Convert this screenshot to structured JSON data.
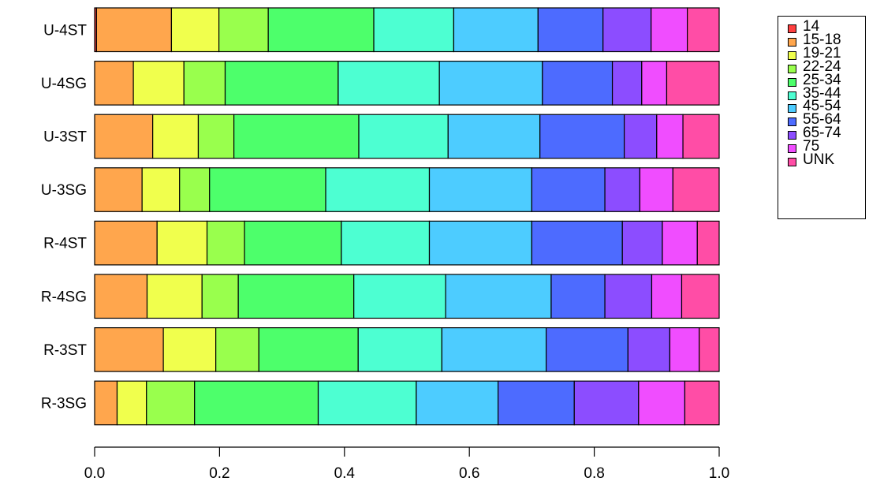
{
  "chart_data": {
    "type": "bar",
    "orientation": "horizontal",
    "stacked": true,
    "categories": [
      "U-4ST",
      "U-4SG",
      "U-3ST",
      "U-3SG",
      "R-4ST",
      "R-4SG",
      "R-3ST",
      "R-3SG"
    ],
    "series": [
      {
        "name": "14",
        "color": "#FF4040",
        "values": [
          0.003,
          0.0,
          0.0,
          0.0,
          0.0,
          0.0,
          0.0,
          0.0
        ]
      },
      {
        "name": "15-18",
        "color": "#FFA64D",
        "values": [
          0.12,
          0.062,
          0.093,
          0.076,
          0.1,
          0.084,
          0.11,
          0.036
        ]
      },
      {
        "name": "19-21",
        "color": "#F0FF4D",
        "values": [
          0.076,
          0.081,
          0.073,
          0.06,
          0.08,
          0.088,
          0.084,
          0.047
        ]
      },
      {
        "name": "22-24",
        "color": "#99FF4D",
        "values": [
          0.079,
          0.066,
          0.057,
          0.048,
          0.06,
          0.058,
          0.069,
          0.077
        ]
      },
      {
        "name": "25-34",
        "color": "#4DFF6B",
        "values": [
          0.169,
          0.181,
          0.2,
          0.186,
          0.155,
          0.185,
          0.159,
          0.198
        ]
      },
      {
        "name": "35-44",
        "color": "#4DFFD2",
        "values": [
          0.128,
          0.162,
          0.143,
          0.166,
          0.141,
          0.147,
          0.134,
          0.157
        ]
      },
      {
        "name": "45-54",
        "color": "#4DCCFF",
        "values": [
          0.135,
          0.165,
          0.147,
          0.164,
          0.164,
          0.169,
          0.167,
          0.131
        ]
      },
      {
        "name": "55-64",
        "color": "#4D6BFF",
        "values": [
          0.104,
          0.112,
          0.135,
          0.117,
          0.145,
          0.086,
          0.131,
          0.122
        ]
      },
      {
        "name": "65-74",
        "color": "#8C4DFF",
        "values": [
          0.077,
          0.047,
          0.052,
          0.056,
          0.064,
          0.075,
          0.067,
          0.103
        ]
      },
      {
        "name": "75",
        "color": "#F04DFF",
        "values": [
          0.058,
          0.04,
          0.042,
          0.053,
          0.056,
          0.048,
          0.047,
          0.074
        ]
      },
      {
        "name": "UNK",
        "color": "#FF4DA6",
        "values": [
          0.051,
          0.084,
          0.058,
          0.074,
          0.035,
          0.06,
          0.032,
          0.055
        ]
      }
    ],
    "xlim": [
      0,
      1
    ],
    "xticks": [
      "0.0",
      "0.2",
      "0.4",
      "0.6",
      "0.8",
      "1.0"
    ],
    "title": "",
    "xlabel": "",
    "ylabel": "",
    "legend_position": "top-right"
  }
}
